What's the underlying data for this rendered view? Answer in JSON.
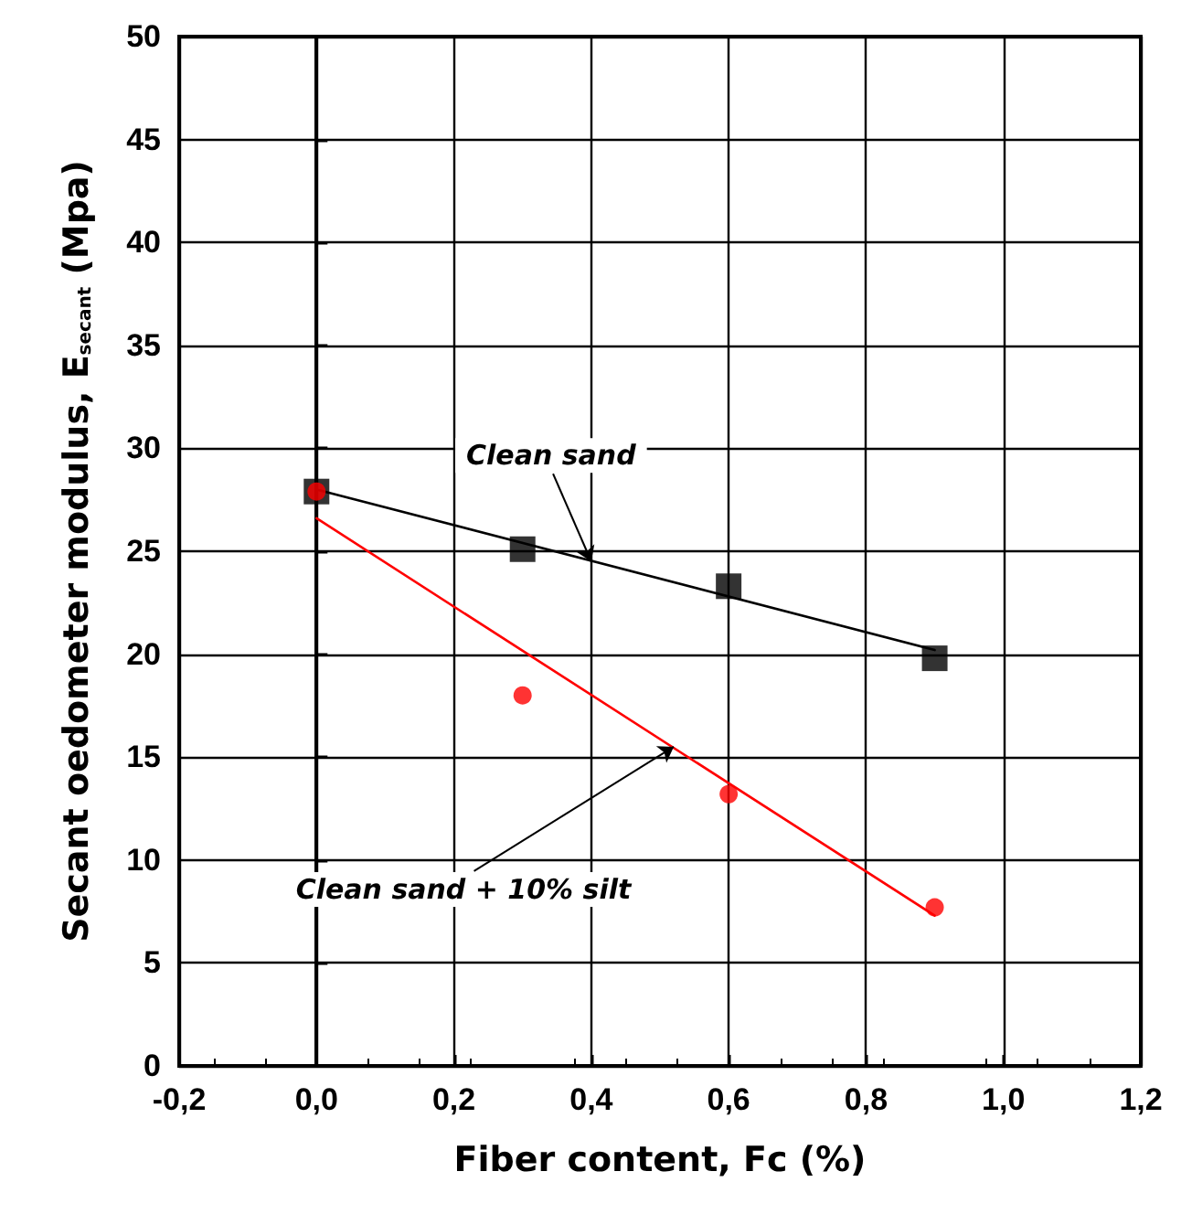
{
  "chart_data": {
    "type": "scatter",
    "xlabel": "Fiber content, Fc (%)",
    "ylabel": "Secant oedometer modulus, E$_{secant}$ (Mpa)",
    "xlim": [
      -0.2,
      1.2
    ],
    "xticks": [
      {
        "value": -0.2,
        "label": "-0,2"
      },
      {
        "value": 0,
        "label": "0,0"
      },
      {
        "value": 0.2,
        "label": "0,2"
      },
      {
        "value": 0.4,
        "label": "0,4"
      },
      {
        "value": 0.6,
        "label": "0,6"
      },
      {
        "value": 0.8,
        "label": "0,8"
      },
      {
        "value": 1,
        "label": "1,0"
      },
      {
        "value": 1.2,
        "label": "1,2"
      }
    ],
    "ylim": [
      0,
      50
    ],
    "yticks": [
      0,
      5,
      10,
      15,
      20,
      25,
      30,
      35,
      40,
      45,
      50
    ],
    "grid": true,
    "series": [
      {
        "type": "line",
        "color": "#000000",
        "marker": "none",
        "x": [
          0,
          0.9
        ],
        "values": [
          28.0,
          20.2
        ]
      },
      {
        "type": "line",
        "color": "#ff0000",
        "marker": "none",
        "x": [
          0,
          0.9
        ],
        "values": [
          26.6,
          7.3
        ]
      },
      {
        "color": "#000000",
        "marker": "square",
        "x": [
          0,
          0.3,
          0.6,
          0.9
        ],
        "values": [
          27.9,
          25.1,
          23.3,
          19.8
        ]
      },
      {
        "color": "#ff0000",
        "marker": "circle",
        "x": [
          0,
          0.3,
          0.6,
          0.9
        ],
        "values": [
          27.9,
          18.0,
          13.2,
          7.7
        ]
      }
    ],
    "annotations": [
      {
        "text": "Clean sand",
        "x": 0.4,
        "y": 24.5
      },
      {
        "text": "Clean sand + 10% silt",
        "x": 0.52,
        "y": 15.5
      }
    ]
  }
}
